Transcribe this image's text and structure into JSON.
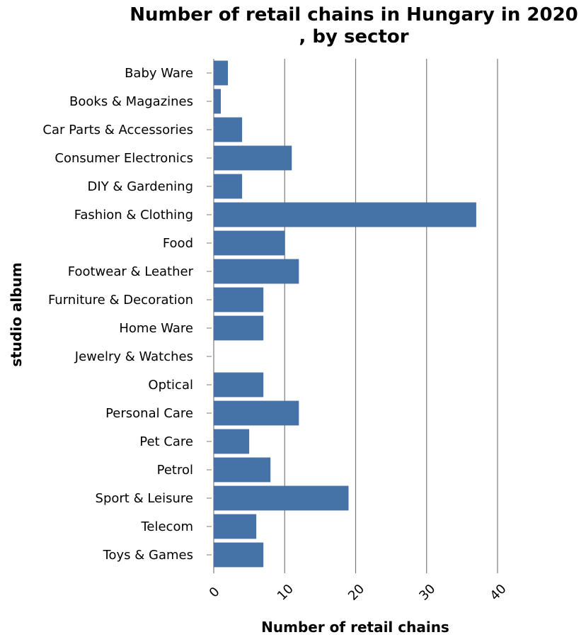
{
  "chart_data": {
    "type": "bar",
    "orientation": "horizontal",
    "title_line1": "Number of retail chains in Hungary in 2020",
    "title_line2": ", by sector",
    "xlabel": "Number of retail chains",
    "ylabel": "studio album",
    "xlim": [
      0,
      40
    ],
    "xticks": [
      0,
      10,
      20,
      30,
      40
    ],
    "grid": true,
    "bar_color": "#4673a7",
    "categories": [
      "Baby Ware",
      "Books & Magazines",
      "Car Parts & Accessories",
      "Consumer Electronics",
      "DIY & Gardening",
      "Fashion & Clothing",
      "Food",
      "Footwear & Leather",
      "Furniture & Decoration",
      "Home Ware",
      "Jewelry & Watches",
      "Optical",
      "Personal Care",
      "Pet Care",
      "Petrol",
      "Sport & Leisure",
      "Telecom",
      "Toys & Games"
    ],
    "values": [
      2,
      1,
      4,
      11,
      4,
      37,
      10,
      12,
      7,
      7,
      0,
      7,
      12,
      5,
      8,
      19,
      6,
      7
    ]
  }
}
